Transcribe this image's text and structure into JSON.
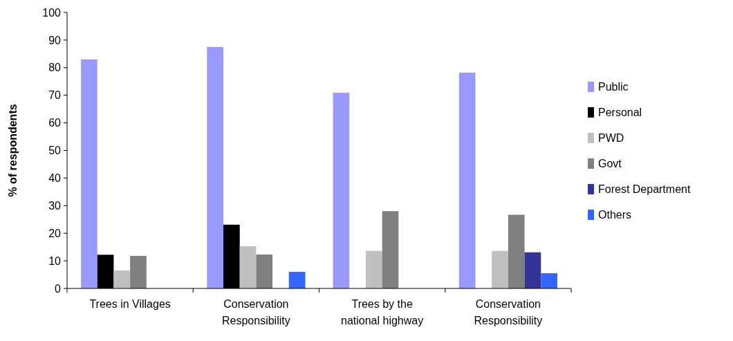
{
  "chart_data": {
    "type": "bar",
    "ylabel": "% of respondents",
    "categories": [
      "Trees in Villages",
      "Conservation Responsibility",
      "Trees by the national highway",
      "Conservation Responsibility"
    ],
    "series": [
      {
        "name": "Public",
        "color": "#9999ff",
        "values": [
          83,
          87.5,
          70.9,
          78.2
        ]
      },
      {
        "name": "Personal",
        "color": "#000000",
        "values": [
          12.2,
          23.1,
          null,
          null
        ]
      },
      {
        "name": "PWD",
        "color": "#c0c0c0",
        "values": [
          6.5,
          15.3,
          13.6,
          13.6
        ]
      },
      {
        "name": "Govt",
        "color": "#808080",
        "values": [
          11.8,
          12.3,
          28,
          26.7
        ]
      },
      {
        "name": "Forest Department",
        "color": "#333399",
        "values": [
          null,
          null,
          null,
          13.1
        ]
      },
      {
        "name": "Others",
        "color": "#3366ff",
        "values": [
          null,
          6,
          null,
          5.5
        ]
      }
    ],
    "ylim": [
      0,
      100
    ],
    "yticks": [
      0,
      10,
      20,
      30,
      40,
      50,
      60,
      70,
      80,
      90,
      100
    ],
    "legend": "right"
  }
}
